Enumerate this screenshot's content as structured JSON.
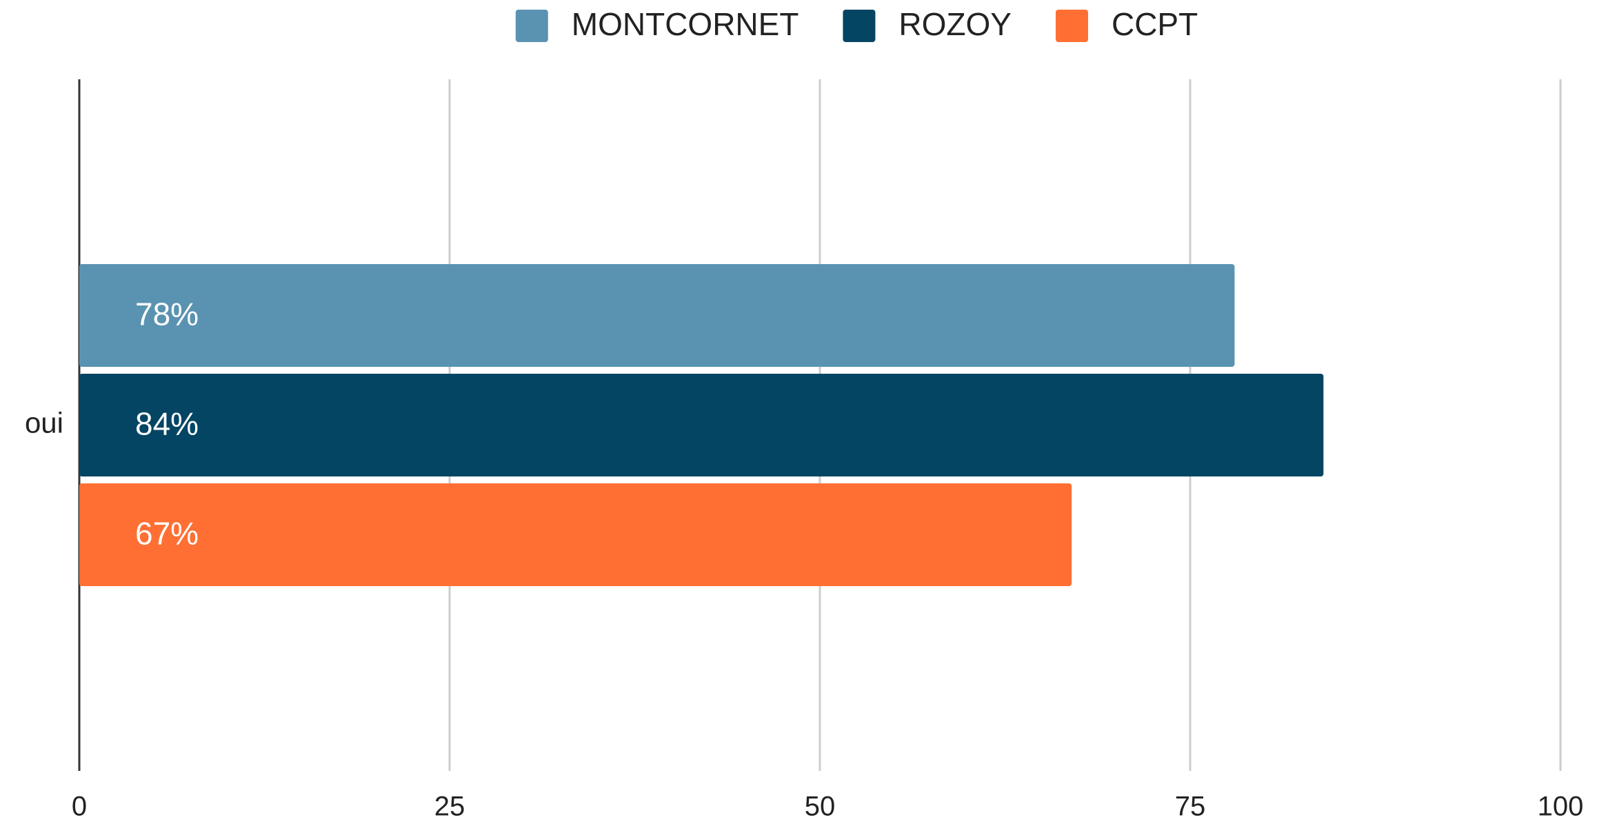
{
  "chart_data": {
    "type": "hbar",
    "categories": [
      "oui"
    ],
    "series": [
      {
        "name": "MONTCORNET",
        "color": "#5a93b1",
        "values": [
          78
        ],
        "value_labels": [
          "78%"
        ]
      },
      {
        "name": "ROZOY",
        "color": "#034563",
        "values": [
          84
        ],
        "value_labels": [
          "84%"
        ]
      },
      {
        "name": "CCPT",
        "color": "#ff6f33",
        "values": [
          67
        ],
        "value_labels": [
          "67%"
        ]
      }
    ],
    "xlim": [
      0,
      100
    ],
    "xticks": [
      0,
      25,
      50,
      75,
      100
    ],
    "grid": true,
    "legend": "top"
  }
}
